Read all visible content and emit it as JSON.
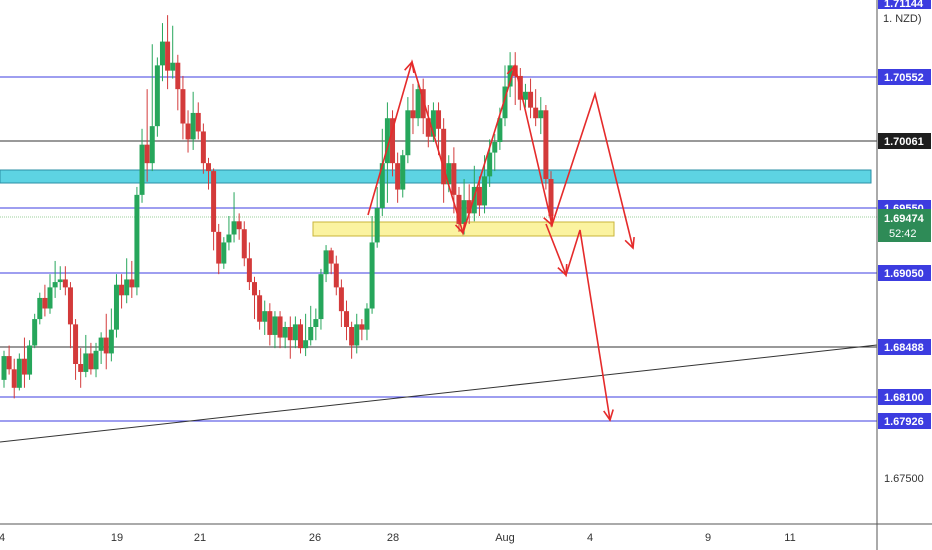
{
  "chart_data": {
    "type": "candlestick",
    "symbol_fragment": "NZD",
    "y_range": [
      1.6685,
      1.711
    ],
    "price_axis_ticks": [
      1.675
    ],
    "x_ticks": [
      "4",
      "19",
      "21",
      "26",
      "28",
      "Aug",
      "4",
      "9",
      "11"
    ],
    "current_price": "1.69474",
    "countdown": "52:42",
    "top_label": "1.71144",
    "levels": [
      {
        "label": "1.70552",
        "price": 1.70552,
        "kind": "resistance"
      },
      {
        "label": "1.70061",
        "price": 1.70061,
        "kind": "current-ref"
      },
      {
        "label": "1.69550",
        "price": 1.6955,
        "kind": "support"
      },
      {
        "label": "1.69050",
        "price": 1.6905,
        "kind": "support"
      },
      {
        "label": "1.68488",
        "price": 1.68488,
        "kind": "support"
      },
      {
        "label": "1.68100",
        "price": 1.681,
        "kind": "support"
      },
      {
        "label": "1.67926",
        "price": 1.67926,
        "kind": "support"
      }
    ],
    "zones": [
      {
        "name": "cyan-zone",
        "from": 1.6972,
        "to": 1.6983
      },
      {
        "name": "yellow-zone",
        "from": 1.694,
        "to": 1.6946
      }
    ],
    "candles": [
      [
        1.6826,
        1.6844,
        1.682,
        1.6848
      ],
      [
        1.6844,
        1.6834,
        1.683,
        1.6852
      ],
      [
        1.6834,
        1.682,
        1.6812,
        1.6842
      ],
      [
        1.682,
        1.6842,
        1.6818,
        1.6846
      ],
      [
        1.6842,
        1.683,
        1.682,
        1.6858
      ],
      [
        1.683,
        1.6852,
        1.6826,
        1.6856
      ],
      [
        1.6852,
        1.6872,
        1.685,
        1.6876
      ],
      [
        1.6872,
        1.6888,
        1.6868,
        1.6892
      ],
      [
        1.6888,
        1.688,
        1.6874,
        1.6898
      ],
      [
        1.688,
        1.6896,
        1.6876,
        1.6906
      ],
      [
        1.6896,
        1.69,
        1.6888,
        1.6916
      ],
      [
        1.69,
        1.6902,
        1.6894,
        1.6912
      ],
      [
        1.6902,
        1.6896,
        1.689,
        1.6912
      ],
      [
        1.6896,
        1.6868,
        1.685,
        1.69
      ],
      [
        1.6868,
        1.6838,
        1.6826,
        1.6872
      ],
      [
        1.6838,
        1.6832,
        1.682,
        1.685
      ],
      [
        1.6832,
        1.6846,
        1.6828,
        1.686
      ],
      [
        1.6846,
        1.6834,
        1.683,
        1.6854
      ],
      [
        1.6834,
        1.6848,
        1.6828,
        1.6854
      ],
      [
        1.6848,
        1.6858,
        1.6838,
        1.6862
      ],
      [
        1.6858,
        1.6846,
        1.6834,
        1.6876
      ],
      [
        1.6846,
        1.6864,
        1.684,
        1.688
      ],
      [
        1.6864,
        1.6898,
        1.6858,
        1.6906
      ],
      [
        1.6898,
        1.689,
        1.688,
        1.6906
      ],
      [
        1.689,
        1.6902,
        1.6884,
        1.6918
      ],
      [
        1.6902,
        1.6896,
        1.6888,
        1.6916
      ],
      [
        1.6896,
        1.6966,
        1.689,
        1.6972
      ],
      [
        1.6966,
        1.7004,
        1.696,
        1.7016
      ],
      [
        1.7004,
        1.699,
        1.6976,
        1.7046
      ],
      [
        1.699,
        1.7018,
        1.6984,
        1.708
      ],
      [
        1.7018,
        1.7064,
        1.701,
        1.707
      ],
      [
        1.7064,
        1.7082,
        1.7052,
        1.7096
      ],
      [
        1.7082,
        1.706,
        1.7046,
        1.7102
      ],
      [
        1.706,
        1.7066,
        1.7054,
        1.7094
      ],
      [
        1.7066,
        1.7046,
        1.703,
        1.7072
      ],
      [
        1.7046,
        1.702,
        1.7008,
        1.7056
      ],
      [
        1.702,
        1.7008,
        1.6998,
        1.703
      ],
      [
        1.7008,
        1.7028,
        1.7,
        1.7044
      ],
      [
        1.7028,
        1.7014,
        1.7008,
        1.7036
      ],
      [
        1.7014,
        1.699,
        1.6982,
        1.702
      ],
      [
        1.699,
        1.6984,
        1.697,
        1.6994
      ],
      [
        1.6984,
        1.6938,
        1.6924,
        1.6986
      ],
      [
        1.6938,
        1.6914,
        1.6906,
        1.6944
      ],
      [
        1.6914,
        1.693,
        1.691,
        1.6934
      ],
      [
        1.693,
        1.6936,
        1.6924,
        1.695
      ],
      [
        1.6936,
        1.6946,
        1.693,
        1.6968
      ],
      [
        1.6946,
        1.694,
        1.6932,
        1.6952
      ],
      [
        1.694,
        1.6918,
        1.6912,
        1.6946
      ],
      [
        1.6918,
        1.69,
        1.6894,
        1.693
      ],
      [
        1.69,
        1.689,
        1.6872,
        1.6904
      ],
      [
        1.689,
        1.687,
        1.6864,
        1.6894
      ],
      [
        1.687,
        1.6878,
        1.686,
        1.6886
      ],
      [
        1.6878,
        1.686,
        1.6852,
        1.6884
      ],
      [
        1.686,
        1.6874,
        1.685,
        1.6878
      ],
      [
        1.6874,
        1.6858,
        1.685,
        1.6878
      ],
      [
        1.6858,
        1.6866,
        1.685,
        1.687
      ],
      [
        1.6866,
        1.6856,
        1.6842,
        1.6874
      ],
      [
        1.6856,
        1.6868,
        1.685,
        1.6874
      ],
      [
        1.6868,
        1.685,
        1.6846,
        1.6872
      ],
      [
        1.685,
        1.6856,
        1.6844,
        1.6876
      ],
      [
        1.6856,
        1.6866,
        1.6852,
        1.6882
      ],
      [
        1.6866,
        1.6872,
        1.6856,
        1.688
      ],
      [
        1.6872,
        1.6906,
        1.6864,
        1.691
      ],
      [
        1.6906,
        1.6924,
        1.69,
        1.6928
      ],
      [
        1.6924,
        1.6914,
        1.6906,
        1.6926
      ],
      [
        1.6914,
        1.6896,
        1.689,
        1.692
      ],
      [
        1.6896,
        1.6878,
        1.6866,
        1.6902
      ],
      [
        1.6878,
        1.6866,
        1.6856,
        1.6886
      ],
      [
        1.6866,
        1.6852,
        1.6842,
        1.687
      ],
      [
        1.6852,
        1.6868,
        1.6846,
        1.6876
      ],
      [
        1.6868,
        1.6864,
        1.6856,
        1.6872
      ],
      [
        1.6864,
        1.688,
        1.6856,
        1.6884
      ],
      [
        1.688,
        1.693,
        1.6876,
        1.695
      ],
      [
        1.693,
        1.6956,
        1.6926,
        1.6972
      ],
      [
        1.6956,
        1.699,
        1.695,
        1.7016
      ],
      [
        1.699,
        1.7024,
        1.696,
        1.7036
      ],
      [
        1.7024,
        1.699,
        1.698,
        1.703
      ],
      [
        1.699,
        1.697,
        1.696,
        1.6998
      ],
      [
        1.697,
        1.6996,
        1.6964,
        1.7
      ],
      [
        1.6996,
        1.703,
        1.699,
        1.704
      ],
      [
        1.703,
        1.7024,
        1.7012,
        1.705
      ],
      [
        1.7024,
        1.7046,
        1.7018,
        1.705
      ],
      [
        1.7046,
        1.7024,
        1.7012,
        1.7054
      ],
      [
        1.7024,
        1.701,
        1.7002,
        1.7034
      ],
      [
        1.701,
        1.703,
        1.7006,
        1.7036
      ],
      [
        1.703,
        1.7016,
        1.6996,
        1.7036
      ],
      [
        1.7016,
        1.6974,
        1.696,
        1.7024
      ],
      [
        1.6974,
        1.699,
        1.6968,
        1.6996
      ],
      [
        1.699,
        1.6966,
        1.6952,
        1.7002
      ],
      [
        1.6966,
        1.6944,
        1.6938,
        1.6972
      ],
      [
        1.6944,
        1.6962,
        1.6936,
        1.6978
      ],
      [
        1.6962,
        1.6952,
        1.6944,
        1.6974
      ],
      [
        1.6952,
        1.6972,
        1.6946,
        1.6988
      ],
      [
        1.6972,
        1.6958,
        1.695,
        1.698
      ],
      [
        1.6958,
        1.698,
        1.6952,
        1.6996
      ],
      [
        1.698,
        1.6998,
        1.6972,
        1.7008
      ],
      [
        1.6998,
        1.7006,
        1.6984,
        1.7012
      ],
      [
        1.7006,
        1.7024,
        1.7,
        1.7032
      ],
      [
        1.7024,
        1.7048,
        1.7018,
        1.7064
      ],
      [
        1.7048,
        1.7064,
        1.704,
        1.7074
      ],
      [
        1.7064,
        1.7056,
        1.7034,
        1.7074
      ],
      [
        1.7056,
        1.7038,
        1.703,
        1.7062
      ],
      [
        1.7038,
        1.7044,
        1.7032,
        1.705
      ],
      [
        1.7044,
        1.7032,
        1.7024,
        1.7054
      ],
      [
        1.7032,
        1.7024,
        1.7018,
        1.7046
      ],
      [
        1.7024,
        1.703,
        1.7012,
        1.704
      ],
      [
        1.703,
        1.6978,
        1.697,
        1.7034
      ],
      [
        1.6978,
        1.695,
        1.6942,
        1.6984
      ]
    ]
  }
}
